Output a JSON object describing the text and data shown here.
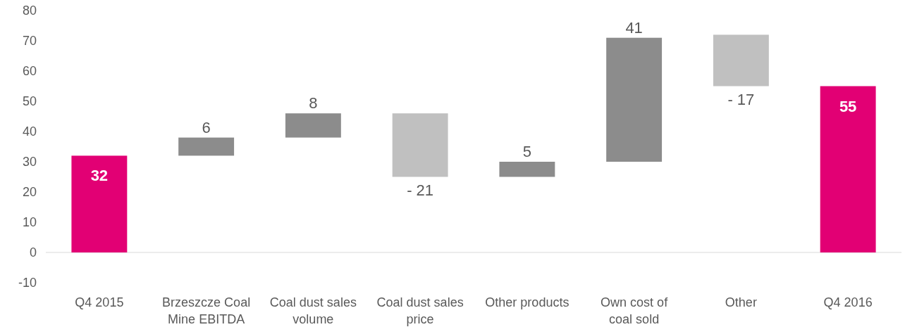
{
  "chart_data": {
    "type": "bar",
    "categories": [
      "Q4 2015",
      "Brzeszcze Coal Mine EBITDA",
      "Coal dust sales volume",
      "Coal dust sales price",
      "Other products",
      "Own cost of coal sold",
      "Other",
      "Q4 2016"
    ],
    "values": [
      32,
      6,
      8,
      -21,
      5,
      41,
      -17,
      55
    ],
    "base": [
      0,
      32,
      38,
      46,
      25,
      30,
      72,
      0
    ],
    "colors": [
      "#e20074",
      "#8c8c8c",
      "#8c8c8c",
      "#c0c0c0",
      "#8c8c8c",
      "#8c8c8c",
      "#c0c0c0",
      "#e20074"
    ],
    "value_labels": [
      "32",
      "6",
      "8",
      "- 21",
      "5",
      "41",
      "- 17",
      "55"
    ],
    "ylim": [
      -10,
      80
    ],
    "yticks": [
      -10,
      0,
      10,
      20,
      30,
      40,
      50,
      60,
      70,
      80
    ]
  }
}
